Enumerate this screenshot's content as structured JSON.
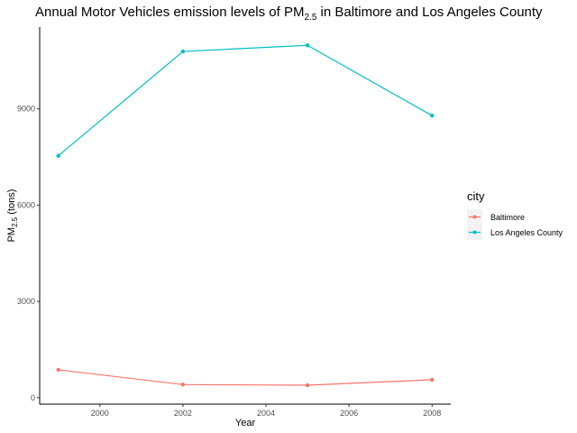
{
  "chart_data": {
    "type": "line",
    "title": {
      "main": "Annual Motor Vehicles emission levels of PM",
      "sub": "2.5",
      "rest": "  in Baltimore and Los Angeles County"
    },
    "xlabel": "Year",
    "ylabel": {
      "main": "PM",
      "sub": "2.5",
      "rest": " (tons)"
    },
    "x": [
      1999,
      2002,
      2005,
      2008
    ],
    "xlim": [
      1998.55,
      2008.45
    ],
    "ylim": [
      -200,
      11550
    ],
    "xticks": [
      2000,
      2002,
      2004,
      2006,
      2008
    ],
    "yticks": [
      0,
      3000,
      6000,
      9000
    ],
    "legend_title": "city",
    "legend_position": "right",
    "grid": false,
    "series": [
      {
        "name": "Baltimore",
        "color": "#F8766D",
        "values": [
          870,
          410,
          390,
          560
        ]
      },
      {
        "name": "Los Angeles County",
        "color": "#00BFC4",
        "values": [
          7540,
          10790,
          10980,
          8790
        ]
      }
    ]
  }
}
